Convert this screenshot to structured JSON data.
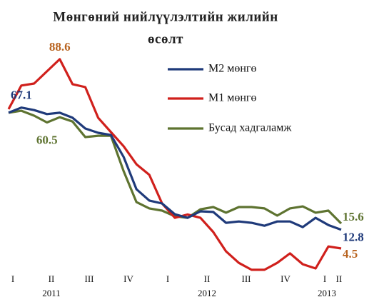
{
  "chart_data": {
    "type": "line",
    "title": [
      "Мөнгөний  нийлүүлэлтийн жилийн",
      "өсөлт"
    ],
    "quarters": [
      "I",
      "II",
      "III",
      "IV",
      "I",
      "II",
      "III",
      "IV",
      "I",
      "II"
    ],
    "years": [
      "2011",
      "2012",
      "2013"
    ],
    "ylim": [
      -12,
      100
    ],
    "series": [
      {
        "name": "М2 мөнгө",
        "color": "#1f3a7a",
        "labels_at": [
          1,
          26
        ],
        "values": [
          64.8,
          67.1,
          66.0,
          64.2,
          64.8,
          62.6,
          57.8,
          55.9,
          54.9,
          45.1,
          30.8,
          25.8,
          24.5,
          19.7,
          18.1,
          21.0,
          20.7,
          15.9,
          16.5,
          15.9,
          14.6,
          16.5,
          16.5,
          14.0,
          18.1,
          14.9,
          12.8
        ]
      },
      {
        "name": "М1 мөнгө",
        "color": "#d0201c",
        "label_color": "#b8631f",
        "labels_at": [
          4,
          26
        ],
        "values": [
          66.4,
          76.9,
          77.8,
          83.2,
          88.6,
          77.5,
          76.2,
          62.6,
          56.2,
          49.9,
          41.9,
          37.2,
          24.5,
          18.1,
          19.6,
          18.1,
          11.8,
          3.2,
          -1.9,
          -5.0,
          -5.0,
          -1.9,
          2.3,
          -2.5,
          -4.4,
          5.4,
          4.5
        ]
      },
      {
        "name": "Бусад  хадгаламж",
        "color": "#5e7330",
        "labels_at": [
          3,
          26
        ],
        "values": [
          64.8,
          65.7,
          63.5,
          60.5,
          62.8,
          60.9,
          54.0,
          54.6,
          54.6,
          38.8,
          25.1,
          22.3,
          21.3,
          18.8,
          18.1,
          21.9,
          22.9,
          20.4,
          22.9,
          22.9,
          22.3,
          19.1,
          22.3,
          23.2,
          20.4,
          21.3,
          15.6
        ]
      }
    ]
  }
}
